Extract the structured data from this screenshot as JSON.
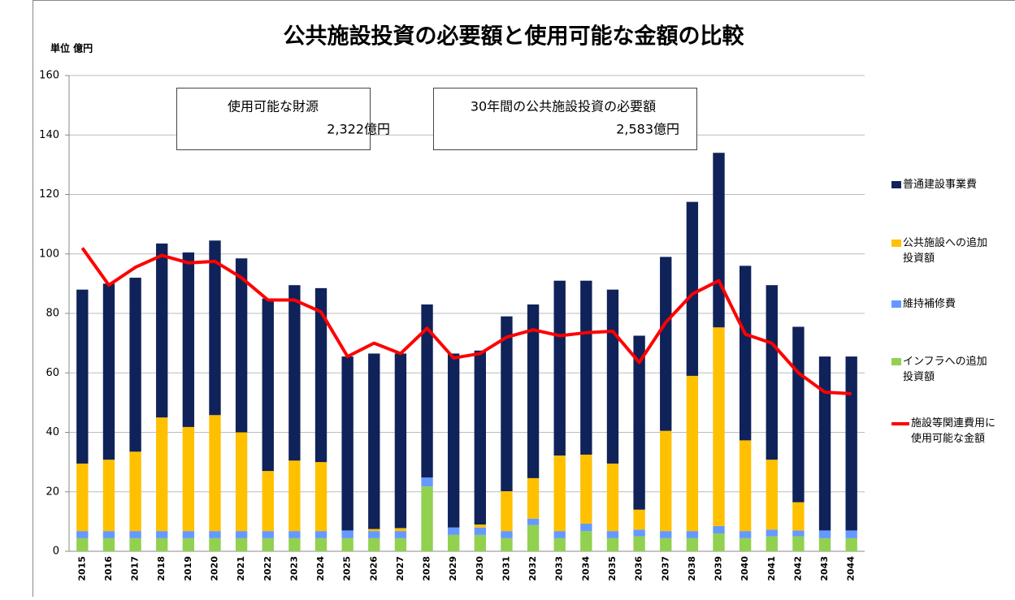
{
  "chart_data": {
    "type": "bar",
    "stacked": true,
    "title": "公共施設投資の必要額と使用可能な金額の比較",
    "y_label": "単位 億円",
    "annotations": [
      [
        "使用可能な財源",
        "2,322億円"
      ],
      [
        "30年間の公共施設投資の必要額",
        "2,583億円"
      ]
    ],
    "categories": [
      "2015",
      "2016",
      "2017",
      "2018",
      "2019",
      "2020",
      "2021",
      "2022",
      "2023",
      "2024",
      "2025",
      "2026",
      "2027",
      "2028",
      "2029",
      "2030",
      "2031",
      "2032",
      "2033",
      "2034",
      "2035",
      "2036",
      "2037",
      "2038",
      "2039",
      "2040",
      "2041",
      "2042",
      "2043",
      "2044"
    ],
    "ylim": [
      0,
      160
    ],
    "yticks": [
      0,
      20,
      40,
      60,
      80,
      100,
      120,
      140,
      160
    ],
    "grid": true,
    "series": [
      {
        "name": "インフラへの追加投資額",
        "type": "bar",
        "color": "#92d050",
        "values": [
          4.4,
          4.4,
          4.4,
          4.4,
          4.4,
          4.4,
          4.4,
          4.4,
          4.4,
          4.4,
          4.4,
          4.4,
          4.4,
          21.8,
          5.5,
          5.5,
          4.4,
          8.8,
          4.4,
          6.8,
          4.4,
          5,
          4.4,
          4.4,
          6,
          4.4,
          5,
          5,
          4.4,
          4.4
        ]
      },
      {
        "name": "維持補修費",
        "type": "bar",
        "color": "#6699ff",
        "values": [
          2.4,
          2.4,
          2.4,
          2.4,
          2.4,
          2.4,
          2.4,
          2.4,
          2.4,
          2.4,
          2.6,
          2.4,
          2.4,
          3,
          2.5,
          2.5,
          2.4,
          2.2,
          2.4,
          2.5,
          2.4,
          2.3,
          2.4,
          2.4,
          2.5,
          2.4,
          2.3,
          2,
          2.6,
          2.6
        ]
      },
      {
        "name": "公共施設への追加投資額",
        "type": "bar",
        "color": "#ffc000",
        "values": [
          22.7,
          24,
          26.7,
          38.2,
          35,
          39,
          33.2,
          20.2,
          23.7,
          23.2,
          0,
          0.7,
          1,
          0,
          0,
          1,
          13.4,
          13.6,
          25.4,
          23.2,
          22.7,
          6.7,
          33.7,
          52.2,
          66.8,
          30.5,
          23.5,
          9.5,
          0,
          0
        ]
      },
      {
        "name": "普通建設事業費",
        "type": "bar",
        "color": "#0f2259",
        "values": [
          58.5,
          59.2,
          58.5,
          58.5,
          58.7,
          58.7,
          58.5,
          58,
          59,
          58.5,
          58.5,
          59,
          58.7,
          58.2,
          58.5,
          58.5,
          58.8,
          58.4,
          58.8,
          58.5,
          58.5,
          58.5,
          58.5,
          58.5,
          58.7,
          58.7,
          58.7,
          59,
          58.5,
          58.5
        ]
      },
      {
        "name": "施設等関連費用に使用可能な金額",
        "type": "line",
        "color": "#ff0000",
        "values": [
          102,
          89.5,
          95.5,
          99.5,
          97,
          97.5,
          92,
          84.5,
          84.5,
          80.5,
          65.5,
          70,
          66.5,
          75,
          65,
          66.5,
          72,
          74.5,
          72.5,
          73.5,
          74,
          63.5,
          77,
          86.5,
          91,
          73,
          70,
          60,
          53.5,
          53
        ]
      }
    ]
  }
}
